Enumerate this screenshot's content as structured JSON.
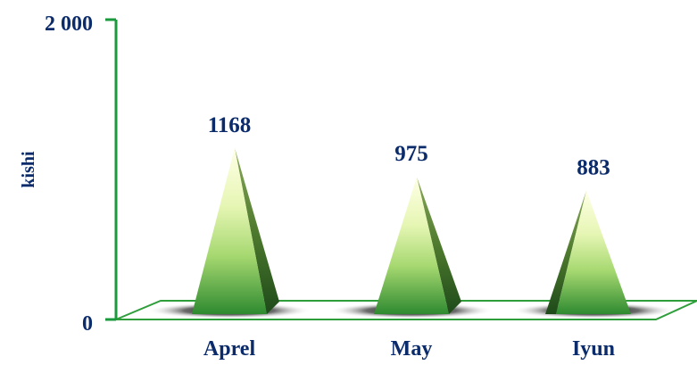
{
  "chart_data": {
    "type": "bar",
    "bar_shape": "pyramid",
    "categories": [
      "Aprel",
      "May",
      "Iyun"
    ],
    "values": [
      1168,
      975,
      883
    ],
    "data_labels": [
      "1168",
      "975",
      "883"
    ],
    "ylabel": "kishi",
    "ylim": [
      0,
      2000
    ],
    "y_tick_labels": [
      "0",
      "2 000"
    ],
    "grid": false,
    "legend": "none",
    "colors": {
      "axis": "#1a9a3c",
      "floor_border": "#2e9e3a",
      "floor_fill": "#ffffff",
      "pyramid_light": "#ffffe6",
      "pyramid_mid": "#a6d870",
      "pyramid_dark": "#2e8a30",
      "pyramid_shadow_side": "#2f5a1f",
      "text": "#0b2b6b"
    }
  }
}
